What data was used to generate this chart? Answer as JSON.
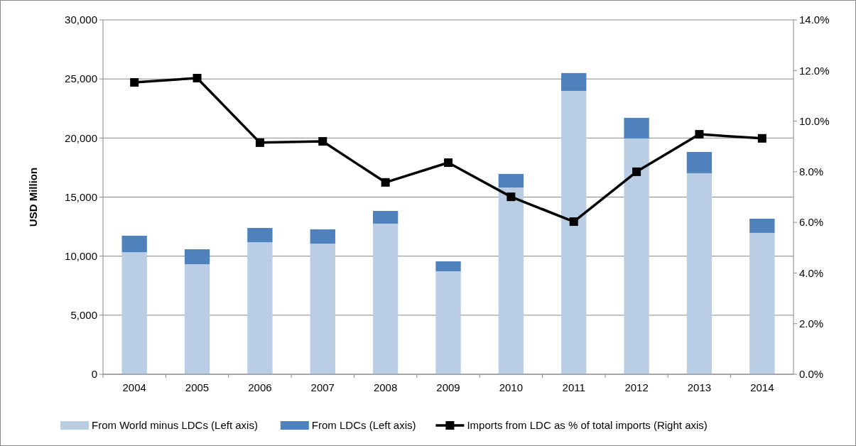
{
  "chart_data": {
    "type": "bar",
    "ylabel": "USD Million",
    "categories": [
      "2004",
      "2005",
      "2006",
      "2007",
      "2008",
      "2009",
      "2010",
      "2011",
      "2012",
      "2013",
      "2014"
    ],
    "stacked": true,
    "series": [
      {
        "name": "From World minus LDCs (Left axis)",
        "color": "#b9cde5",
        "values": [
          10340,
          9320,
          11180,
          11060,
          12750,
          8720,
          15810,
          23990,
          19960,
          17020,
          11970
        ]
      },
      {
        "name": "From LDCs (Left axis)",
        "color": "#4f81bd",
        "values": [
          1390,
          1260,
          1210,
          1210,
          1080,
          840,
          1150,
          1510,
          1750,
          1800,
          1200
        ]
      },
      {
        "name": "Imports from LDC as % of total imports (Right axis)",
        "type": "line",
        "axis": "y2",
        "color": "#000000",
        "marker": "square",
        "values": [
          11.53,
          11.7,
          9.15,
          9.2,
          7.58,
          8.36,
          7.01,
          6.03,
          8.0,
          9.48,
          9.32
        ]
      }
    ],
    "ylim": [
      0,
      30000
    ],
    "yticks": [
      {
        "value": 0,
        "label": "0"
      },
      {
        "value": 5000,
        "label": "5,000"
      },
      {
        "value": 10000,
        "label": "10,000"
      },
      {
        "value": 15000,
        "label": "15,000"
      },
      {
        "value": 20000,
        "label": "20,000"
      },
      {
        "value": 25000,
        "label": "25,000"
      },
      {
        "value": 30000,
        "label": "30,000"
      }
    ],
    "y2lim": [
      0,
      14
    ],
    "y2ticks": [
      {
        "value": 0,
        "label": "0.0%"
      },
      {
        "value": 2,
        "label": "2.0%"
      },
      {
        "value": 4,
        "label": "4.0%"
      },
      {
        "value": 6,
        "label": "6.0%"
      },
      {
        "value": 8,
        "label": "8.0%"
      },
      {
        "value": 10,
        "label": "10.0%"
      },
      {
        "value": 12,
        "label": "12.0%"
      },
      {
        "value": 14,
        "label": "14.0%"
      }
    ],
    "grid": "y",
    "legend": "bottom"
  }
}
